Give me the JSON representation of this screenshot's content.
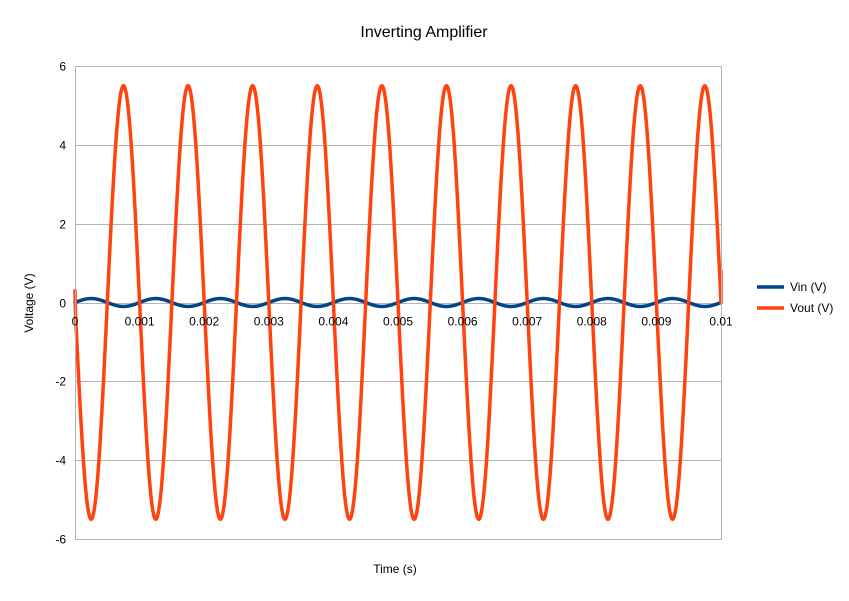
{
  "chart_data": {
    "type": "line",
    "title": "Inverting Amplifier",
    "xlabel": "Time (s)",
    "ylabel": "Voltage (V)",
    "xlim": [
      0,
      0.01
    ],
    "ylim": [
      -6,
      6
    ],
    "x_ticks": [
      "0",
      "0.001",
      "0.002",
      "0.003",
      "0.004",
      "0.005",
      "0.006",
      "0.007",
      "0.008",
      "0.009",
      "0.01"
    ],
    "y_ticks": [
      "6",
      "4",
      "2",
      "0",
      "-2",
      "-4",
      "-6"
    ],
    "grid": "horizontal",
    "legend_position": "right",
    "series": [
      {
        "name": "Vin (V)",
        "color": "#004586",
        "waveform": "sine",
        "frequency_hz": 1000,
        "amplitude_v": 0.1,
        "offset_v": 0.0
      },
      {
        "name": "Vout (V)",
        "color": "#ff420e",
        "waveform": "sine",
        "frequency_hz": 1000,
        "amplitude_v": 5.5,
        "offset_v": 0.0,
        "inverted": true,
        "start_value_v": 0.3,
        "end_value_v": 0.8
      }
    ]
  }
}
